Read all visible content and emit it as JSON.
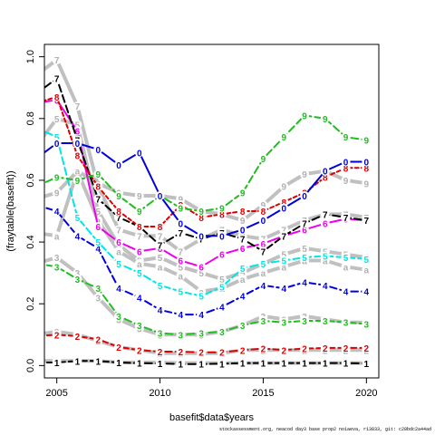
{
  "chart_data": {
    "type": "line",
    "title": "",
    "xlabel": "basefit$data$years",
    "ylabel": "(fraytable(basefit))",
    "xlim": [
      2004.4,
      2020.6
    ],
    "ylim": [
      -0.04,
      1.04
    ],
    "xticks": [
      2005,
      2010,
      2015,
      2020
    ],
    "yticks": [
      0.0,
      0.2,
      0.4,
      0.6,
      0.8,
      1.0
    ],
    "x": [
      2004,
      2005,
      2006,
      2007,
      2008,
      2009,
      2010,
      2011,
      2012,
      2013,
      2014,
      2015,
      2016,
      2017,
      2018,
      2019,
      2020
    ],
    "grid": false,
    "legend": "none",
    "series": [
      {
        "label": "1",
        "color": "#000000",
        "dash": "8,4",
        "values": [
          0.01,
          0.01,
          0.015,
          0.015,
          0.01,
          0.008,
          0.007,
          0.005,
          0.005,
          0.006,
          0.008,
          0.008,
          0.008,
          0.008,
          0.008,
          0.008,
          0.007
        ]
      },
      {
        "label": "2",
        "color": "#dd0000",
        "dash": "8,4",
        "values": [
          0.095,
          0.1,
          0.095,
          0.085,
          0.06,
          0.05,
          0.045,
          0.045,
          0.043,
          0.043,
          0.05,
          0.055,
          0.05,
          0.055,
          0.057,
          0.057,
          0.057
        ]
      },
      {
        "label": "3",
        "color": "#22bb22",
        "dash": "8,4",
        "values": [
          0.33,
          0.32,
          0.28,
          0.25,
          0.16,
          0.13,
          0.105,
          0.1,
          0.105,
          0.11,
          0.13,
          0.145,
          0.14,
          0.145,
          0.145,
          0.14,
          0.135
        ]
      },
      {
        "label": "4",
        "color": "#0000dd",
        "dash": "8,4",
        "values": [
          0.52,
          0.5,
          0.42,
          0.38,
          0.25,
          0.22,
          0.18,
          0.165,
          0.165,
          0.19,
          0.225,
          0.26,
          0.25,
          0.27,
          0.26,
          0.24,
          0.24
        ]
      },
      {
        "label": "5",
        "color": "#00e5e5",
        "dash": "8,4",
        "values": [
          0.77,
          0.74,
          0.48,
          0.4,
          0.33,
          0.3,
          0.26,
          0.24,
          0.225,
          0.255,
          0.315,
          0.33,
          0.34,
          0.35,
          0.355,
          0.35,
          0.345
        ]
      },
      {
        "label": "6",
        "color": "#ee00ee",
        "dash": "",
        "values": [
          0.85,
          0.86,
          0.76,
          0.45,
          0.4,
          0.37,
          0.38,
          0.34,
          0.32,
          0.36,
          0.38,
          0.395,
          0.42,
          0.44,
          0.46,
          0.475,
          0.47
        ]
      },
      {
        "label": "7",
        "color": "#000000",
        "dash": "8,4",
        "values": [
          0.88,
          0.93,
          0.73,
          0.54,
          0.48,
          0.45,
          0.39,
          0.43,
          0.41,
          0.43,
          0.41,
          0.37,
          0.42,
          0.46,
          0.49,
          0.48,
          0.47
        ]
      },
      {
        "label": "8",
        "color": "#dd0000",
        "dash": "4,3",
        "values": [
          0.85,
          0.87,
          0.68,
          0.58,
          0.5,
          0.45,
          0.45,
          0.52,
          0.48,
          0.49,
          0.5,
          0.5,
          0.53,
          0.56,
          0.61,
          0.64,
          0.64
        ]
      },
      {
        "label": "9",
        "color": "#22bb22",
        "dash": "8,4",
        "values": [
          0.58,
          0.61,
          0.6,
          0.62,
          0.55,
          0.5,
          0.55,
          0.51,
          0.5,
          0.51,
          0.56,
          0.67,
          0.74,
          0.81,
          0.8,
          0.74,
          0.73
        ]
      },
      {
        "label": "0",
        "color": "#0000dd",
        "dash": "",
        "values": [
          0.67,
          0.72,
          0.72,
          0.7,
          0.65,
          0.69,
          0.55,
          0.46,
          0.42,
          0.42,
          0.44,
          0.47,
          0.51,
          0.55,
          0.63,
          0.66,
          0.66
        ]
      }
    ],
    "ghost_series": [
      {
        "label": "9",
        "color": "#c0c0c0",
        "values": [
          0.54,
          0.56,
          0.63,
          0.59,
          0.56,
          0.55,
          0.55,
          0.54,
          0.5,
          0.49,
          0.47,
          0.52,
          0.58,
          0.62,
          0.63,
          0.6,
          0.59
        ]
      },
      {
        "label": "7",
        "color": "#c0c0c0",
        "values": [
          0.94,
          0.99,
          0.84,
          0.58,
          0.44,
          0.42,
          0.42,
          0.37,
          0.41,
          0.44,
          0.42,
          0.41,
          0.44,
          0.47,
          0.49,
          0.49,
          0.48
        ]
      },
      {
        "label": "5",
        "color": "#c0c0c0",
        "values": [
          0.71,
          0.8,
          0.78,
          0.5,
          0.39,
          0.34,
          0.35,
          0.32,
          0.3,
          0.28,
          0.3,
          0.33,
          0.36,
          0.38,
          0.37,
          0.36,
          0.35
        ]
      },
      {
        "label": "a",
        "color": "#c0c0c0",
        "values": [
          0.43,
          0.42,
          0.63,
          0.47,
          0.37,
          0.33,
          0.32,
          0.29,
          0.24,
          0.25,
          0.28,
          0.3,
          0.32,
          0.34,
          0.34,
          0.32,
          0.31
        ]
      },
      {
        "label": "3",
        "color": "#c0c0c0",
        "values": [
          0.33,
          0.35,
          0.3,
          0.22,
          0.15,
          0.12,
          0.1,
          0.1,
          0.1,
          0.11,
          0.13,
          0.16,
          0.15,
          0.16,
          0.15,
          0.14,
          0.14
        ]
      },
      {
        "label": "2",
        "color": "#c0c0c0",
        "values": [
          0.1,
          0.11,
          0.1,
          0.08,
          0.06,
          0.05,
          0.04,
          0.04,
          0.04,
          0.04,
          0.05,
          0.05,
          0.05,
          0.05,
          0.05,
          0.05,
          0.05
        ]
      },
      {
        "label": "1",
        "color": "#c0c0c0",
        "values": [
          0.015,
          0.015,
          0.015,
          0.015,
          0.01,
          0.01,
          0.01,
          0.008,
          0.008,
          0.008,
          0.008,
          0.008,
          0.008,
          0.008,
          0.008,
          0.008,
          0.008
        ]
      }
    ]
  },
  "footer": "stockassessment.org, neacod day3 base prop2 no1aeva, r13833, git: c28bdc2a44ad"
}
